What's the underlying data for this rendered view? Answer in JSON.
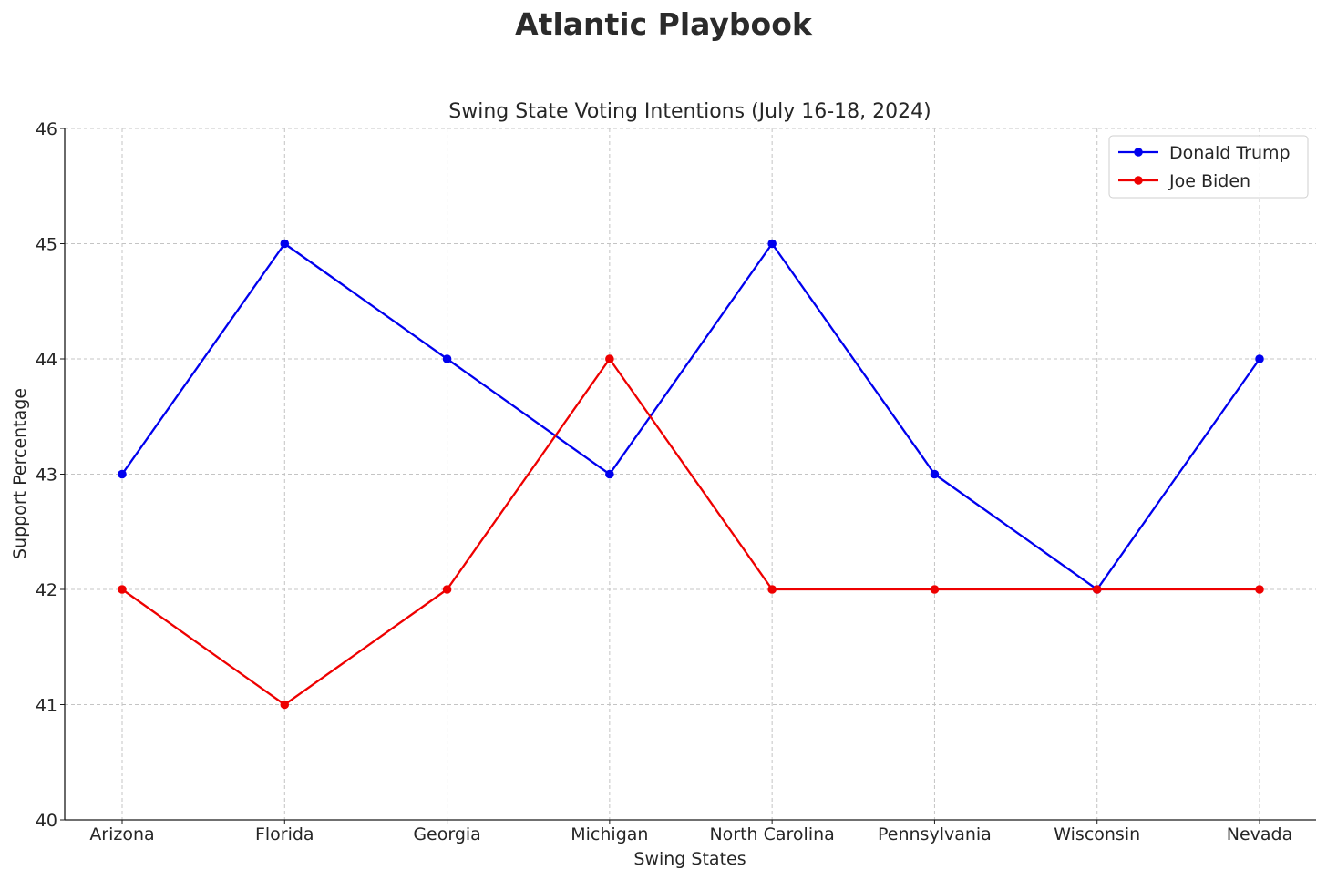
{
  "page": {
    "suptitle": "Atlantic Playbook"
  },
  "chart_data": {
    "type": "line",
    "title": "Swing State Voting Intentions (July 16-18, 2024)",
    "xlabel": "Swing States",
    "ylabel": "Support Percentage",
    "categories": [
      "Arizona",
      "Florida",
      "Georgia",
      "Michigan",
      "North Carolina",
      "Pennsylvania",
      "Wisconsin",
      "Nevada"
    ],
    "ylim": [
      40,
      46
    ],
    "yticks": [
      40,
      41,
      42,
      43,
      44,
      45,
      46
    ],
    "grid": true,
    "legend_position": "top-right",
    "series": [
      {
        "name": "Donald Trump",
        "color": "#0000ee",
        "marker": "circle",
        "values": [
          43,
          45,
          44,
          43,
          45,
          43,
          42,
          44
        ]
      },
      {
        "name": "Joe Biden",
        "color": "#ee0000",
        "marker": "circle",
        "values": [
          42,
          41,
          42,
          44,
          42,
          42,
          42,
          42
        ]
      }
    ]
  }
}
